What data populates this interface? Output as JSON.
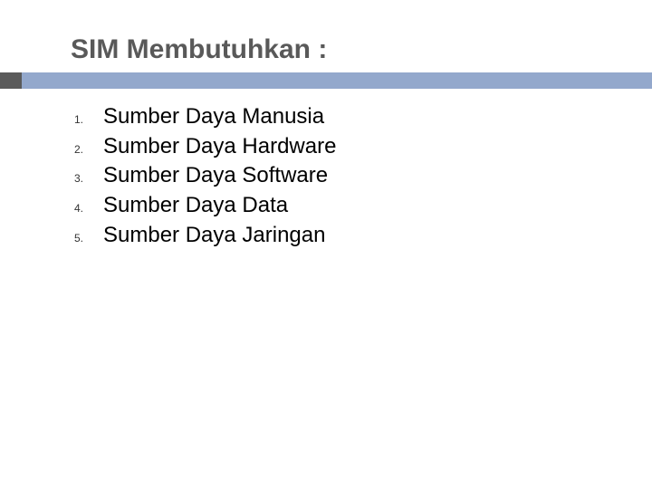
{
  "title": "SIM Membutuhkan :",
  "title_color": "#595959",
  "title_fontsize": 30,
  "underline_bar_color": "#93a8cc",
  "underline_accent_color": "#5a5a5a",
  "background_color": "#ffffff",
  "list": {
    "numbers": [
      "1.",
      "2.",
      "3.",
      "4.",
      "5."
    ],
    "items": [
      "Sumber Daya Manusia",
      "Sumber Daya Hardware",
      "Sumber Daya Software",
      "Sumber Daya Data",
      "Sumber Daya Jaringan"
    ],
    "number_fontsize": 12,
    "text_fontsize": 24,
    "text_color": "#000000"
  }
}
